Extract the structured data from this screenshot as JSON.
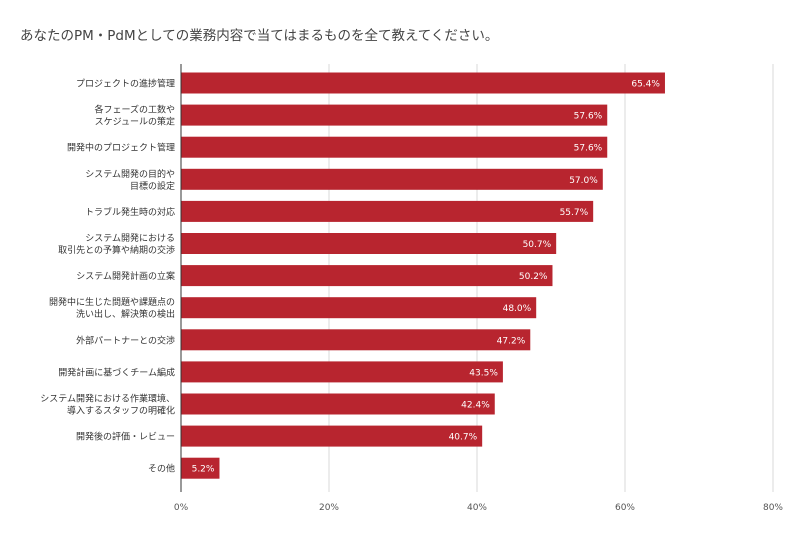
{
  "chart_data": {
    "type": "bar",
    "orientation": "horizontal",
    "title": "あなたのPM・PdMとしての業務内容で当てはまるものを全て教えてください。",
    "categories": [
      [
        "プロジェクトの進捗管理"
      ],
      [
        "各フェーズの工数や",
        "スケジュールの策定"
      ],
      [
        "開発中のプロジェクト管理"
      ],
      [
        "システム開発の目的や",
        "目標の設定"
      ],
      [
        "トラブル発生時の対応"
      ],
      [
        "システム開発における",
        "取引先との予算や納期の交渉"
      ],
      [
        "システム開発計画の立案"
      ],
      [
        "開発中に生じた問題や課題点の",
        "洗い出し、解決策の検出"
      ],
      [
        "外部パートナーとの交渉"
      ],
      [
        "開発計画に基づくチーム編成"
      ],
      [
        "システム開発における作業環境、",
        "導入するスタッフの明確化"
      ],
      [
        "開発後の評価・レビュー"
      ],
      [
        "その他"
      ]
    ],
    "values": [
      65.4,
      57.6,
      57.6,
      57.0,
      55.7,
      50.7,
      50.2,
      48.0,
      47.2,
      43.5,
      42.4,
      40.7,
      5.2
    ],
    "value_labels": [
      "65.4%",
      "57.6%",
      "57.6%",
      "57.0%",
      "55.7%",
      "50.7%",
      "50.2%",
      "48.0%",
      "47.2%",
      "43.5%",
      "42.4%",
      "40.7%",
      "5.2%"
    ],
    "xlim": [
      0,
      80
    ],
    "x_ticks": [
      0,
      20,
      40,
      60,
      80
    ],
    "x_tick_labels": [
      "0%",
      "20%",
      "40%",
      "60%",
      "80%"
    ],
    "grid": true,
    "bar_color": "#B8252F",
    "grid_color": "#D9D9D9"
  }
}
